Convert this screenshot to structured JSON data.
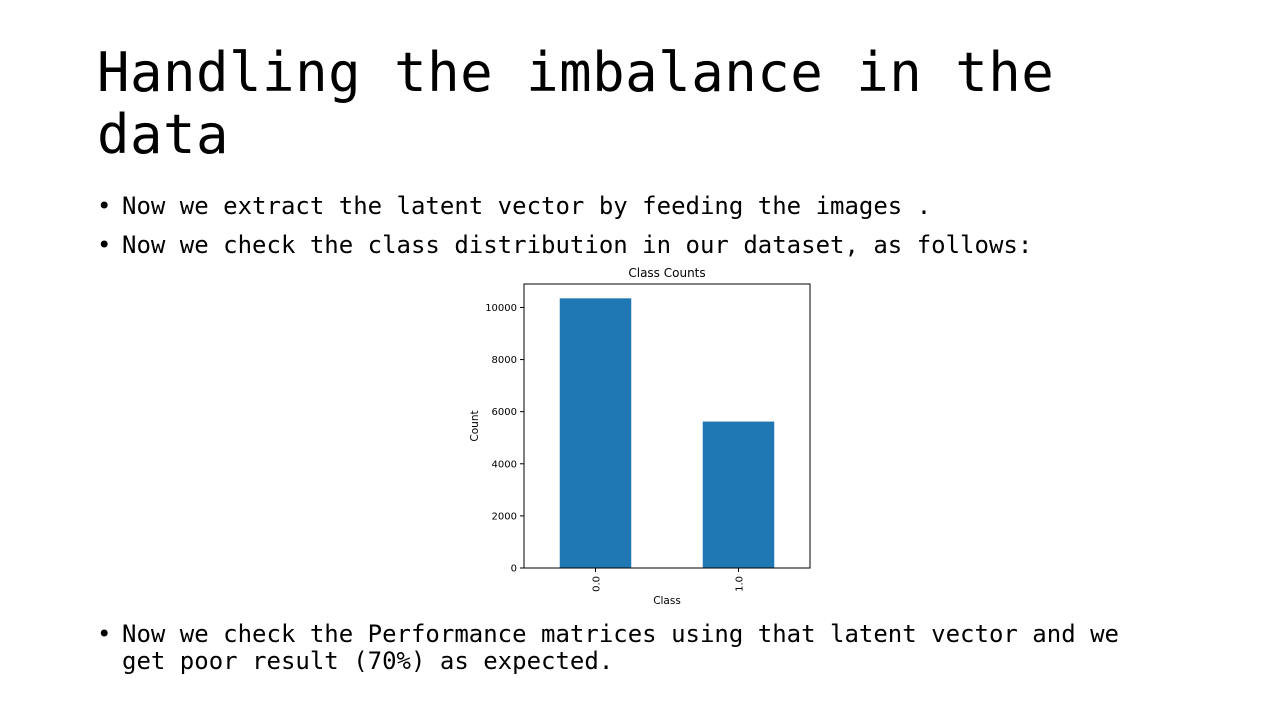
{
  "slide": {
    "title": "Handling the imbalance in the data",
    "bullets": [
      "Now we extract the latent vector by feeding the images .",
      "Now we check the class distribution in our dataset, as follows:",
      "Now we check the Performance matrices using that latent vector and we get poor result (70%) as expected."
    ],
    "bullet_symbol": "•"
  },
  "chart_data": {
    "type": "bar",
    "title": "Class Counts",
    "xlabel": "Class",
    "ylabel": "Count",
    "categories": [
      "0.0",
      "1.0"
    ],
    "values": [
      10350,
      5620
    ],
    "ylim": [
      0,
      10900
    ],
    "yticks": [
      0,
      2000,
      4000,
      6000,
      8000,
      10000
    ],
    "bar_color": "#1f77b4",
    "grid": false,
    "xtick_rotation": "vertical"
  }
}
